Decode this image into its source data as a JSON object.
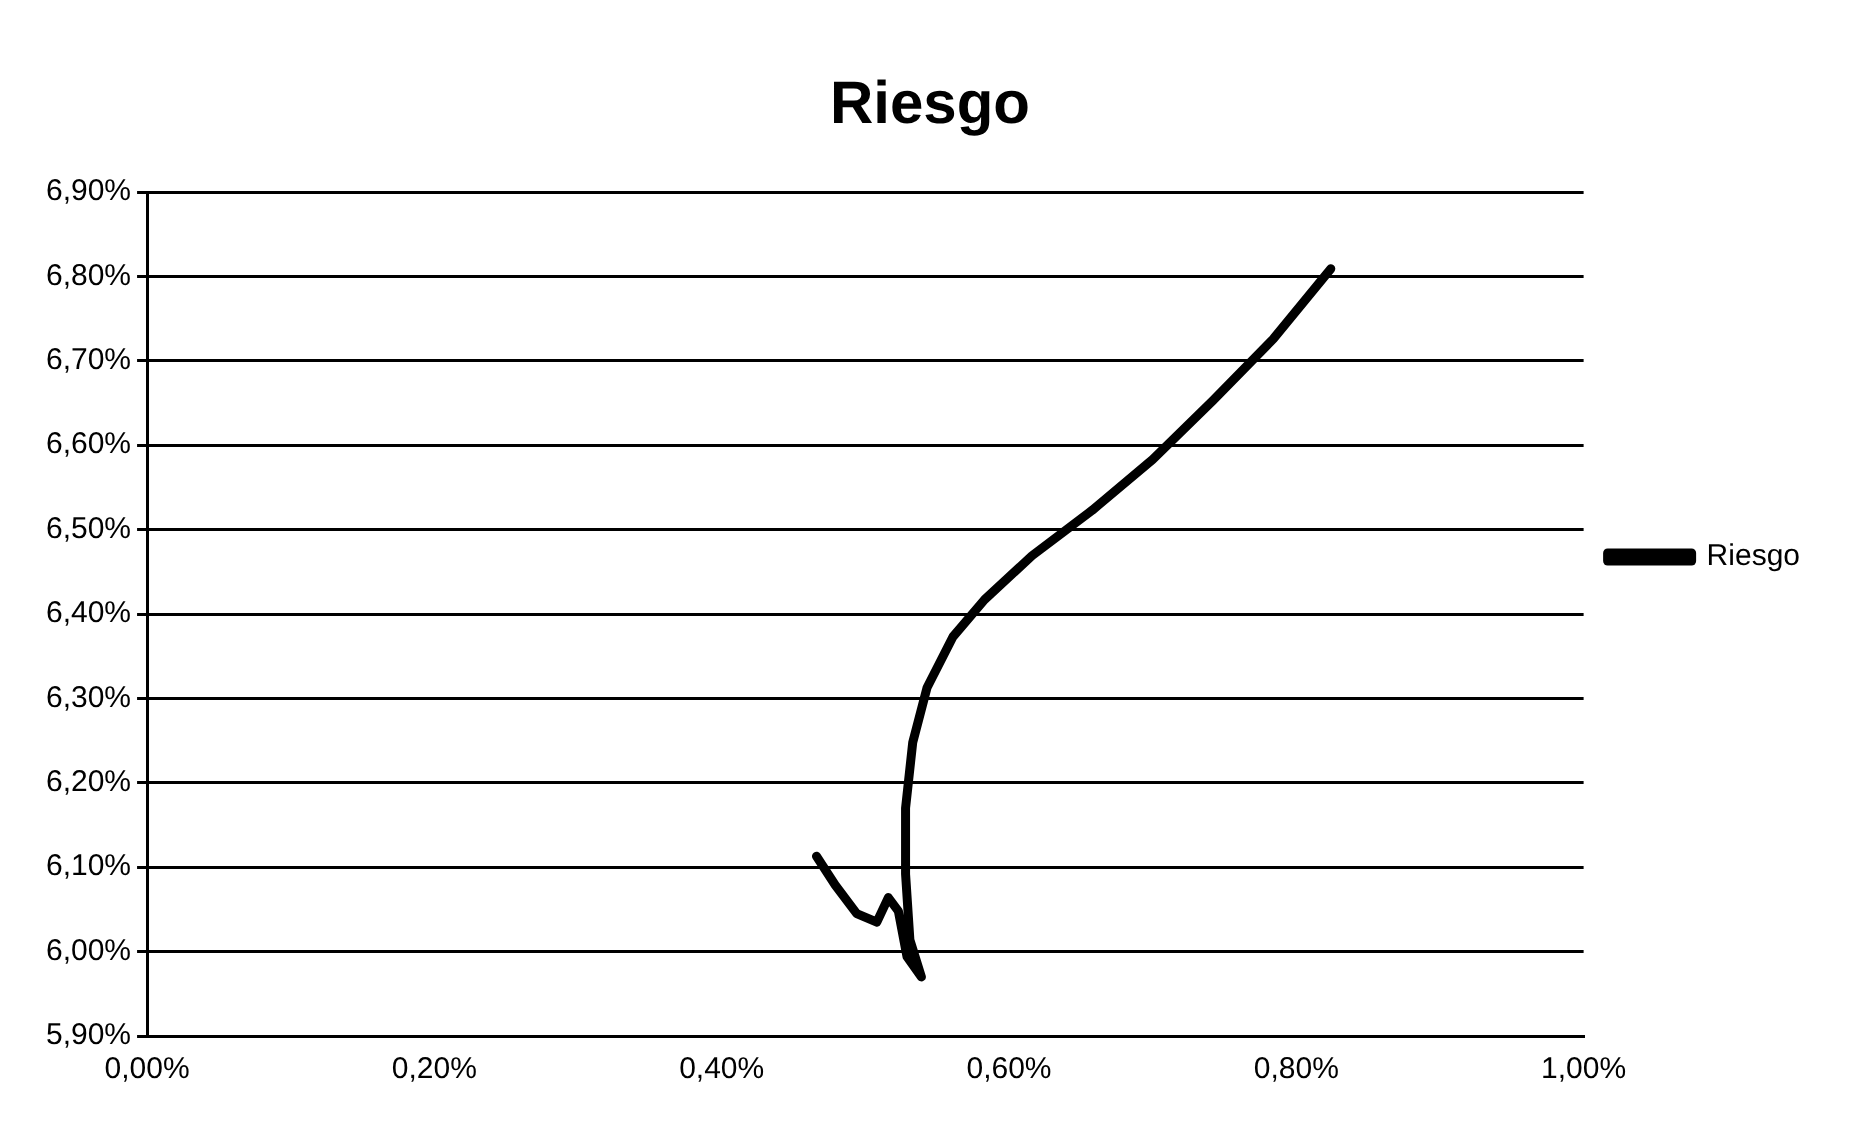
{
  "chart_data": {
    "type": "line",
    "title": "Riesgo",
    "series": [
      {
        "name": "Riesgo",
        "color": "#000000",
        "x": [
          0.466,
          0.479,
          0.494,
          0.508,
          0.516,
          0.523,
          0.529,
          0.539,
          0.531,
          0.528,
          0.528,
          0.533,
          0.543,
          0.561,
          0.583,
          0.616,
          0.658,
          0.7,
          0.742,
          0.784,
          0.824
        ],
        "values": [
          6.113,
          6.079,
          6.045,
          6.035,
          6.064,
          6.048,
          5.994,
          5.97,
          6.014,
          6.092,
          6.17,
          6.248,
          6.313,
          6.373,
          6.417,
          6.469,
          6.523,
          6.583,
          6.653,
          6.726,
          6.809
        ]
      }
    ],
    "xlim": [
      0,
      1
    ],
    "xticks": [
      {
        "value": 0,
        "label": "0,00%"
      },
      {
        "value": 0.2,
        "label": "0,20%"
      },
      {
        "value": 0.4,
        "label": "0,40%"
      },
      {
        "value": 0.6,
        "label": "0,60%"
      },
      {
        "value": 0.8,
        "label": "0,80%"
      },
      {
        "value": 1,
        "label": "1,00%"
      }
    ],
    "ylim": [
      5.9,
      6.9
    ],
    "yticks": [
      {
        "value": 5.9,
        "label": "5,90%"
      },
      {
        "value": 6,
        "label": "6,00%"
      },
      {
        "value": 6.1,
        "label": "6,10%"
      },
      {
        "value": 6.2,
        "label": "6,20%"
      },
      {
        "value": 6.3,
        "label": "6,30%"
      },
      {
        "value": 6.4,
        "label": "6,40%"
      },
      {
        "value": 6.5,
        "label": "6,50%"
      },
      {
        "value": 6.6,
        "label": "6,60%"
      },
      {
        "value": 6.7,
        "label": "6,70%"
      },
      {
        "value": 6.8,
        "label": "6,80%"
      },
      {
        "value": 6.9,
        "label": "6,90%"
      }
    ],
    "grid": "y",
    "legend": "right",
    "marker": "none",
    "line_style": "solid"
  }
}
